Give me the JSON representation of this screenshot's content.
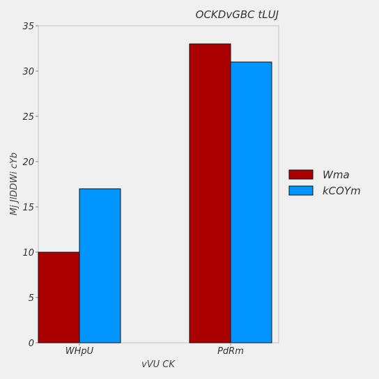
{
  "chart_data": {
    "type": "bar",
    "title": "OCKDvGBC tLUJ",
    "xlabel": "vVU CK",
    "ylabel": "Mj JlDDWi cYb",
    "categories": [
      "WHpU",
      "PdRm"
    ],
    "series": [
      {
        "name": "Wma",
        "values": [
          10,
          33
        ],
        "color": "#aa0000"
      },
      {
        "name": "kCOYm",
        "values": [
          17,
          31
        ],
        "color": "#0095ff"
      }
    ],
    "ylim": [
      0,
      35
    ],
    "yticks": [
      0,
      5,
      10,
      15,
      20,
      25,
      30,
      35
    ],
    "grid": false,
    "legend_position": "right"
  }
}
